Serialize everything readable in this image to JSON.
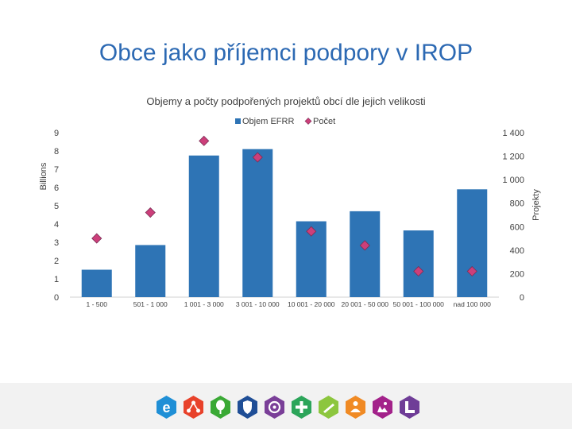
{
  "slide": {
    "title": "Obce jako příjemci podpory v IROP"
  },
  "chart_data": {
    "type": "bar",
    "title": "Objemy a počty podpořených projektů obcí dle jejich velikosti",
    "categories": [
      "1 - 500",
      "501 - 1 000",
      "1 001 - 3 000",
      "3 001 - 10 000",
      "10 001 - 20 000",
      "20 001 - 50 000",
      "50 001 - 100 000",
      "nad 100 000"
    ],
    "series": [
      {
        "name": "Objem EFRR",
        "kind": "bar",
        "axis": "left",
        "color": "#2e74b5",
        "values": [
          1.5,
          2.85,
          7.75,
          8.1,
          4.15,
          4.7,
          3.65,
          5.9
        ]
      },
      {
        "name": "Počet",
        "kind": "marker",
        "axis": "right",
        "color": "#cc3f7a",
        "values": [
          500,
          720,
          1330,
          1190,
          560,
          440,
          220,
          220
        ]
      }
    ],
    "y_left": {
      "label": "Billions",
      "min": 0,
      "max": 9,
      "ticks": [
        0,
        1,
        2,
        3,
        4,
        5,
        6,
        7,
        8,
        9
      ]
    },
    "y_right": {
      "label": "Projekty",
      "min": 0,
      "max": 1400,
      "ticks": [
        0,
        200,
        400,
        600,
        800,
        1000,
        1200,
        1400
      ],
      "tick_labels": [
        "0",
        "200",
        "400",
        "600",
        "800",
        "1 000",
        "1 200",
        "1 400"
      ]
    },
    "legend_position": "top",
    "grid": false
  },
  "footer": {
    "logos": [
      {
        "icon": "e-letter-icon",
        "color": "#1f8fd6"
      },
      {
        "icon": "network-icon",
        "color": "#e8422b"
      },
      {
        "icon": "tree-icon",
        "color": "#3aa935"
      },
      {
        "icon": "shield-icon",
        "color": "#1f4e96"
      },
      {
        "icon": "gear-icon",
        "color": "#7a3f98"
      },
      {
        "icon": "cross-icon",
        "color": "#2ca55a"
      },
      {
        "icon": "pen-icon",
        "color": "#8cc63e"
      },
      {
        "icon": "people-icon",
        "color": "#f08a24"
      },
      {
        "icon": "landmark-icon",
        "color": "#a3228a"
      },
      {
        "icon": "corner-icon",
        "color": "#6f3d97"
      }
    ]
  }
}
